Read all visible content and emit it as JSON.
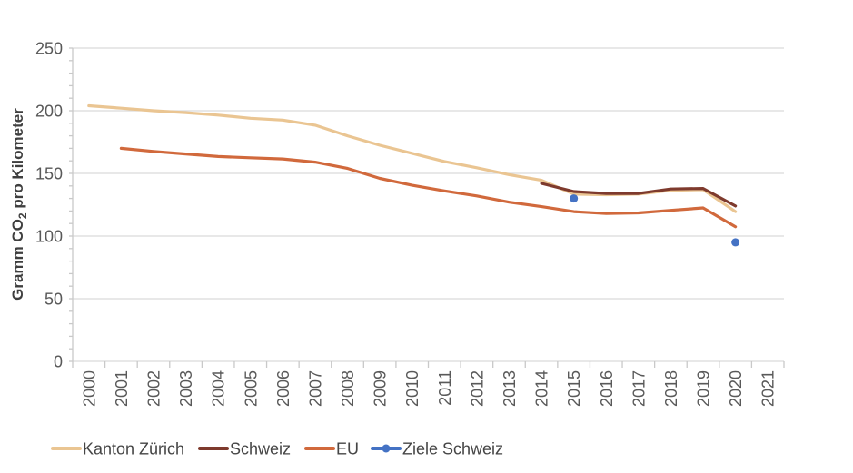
{
  "chart_data": {
    "type": "line",
    "title": "",
    "xlabel": "",
    "ylabel": "Gramm CO₂ pro Kilometer",
    "ylabel_parts": {
      "pre": "Gramm CO",
      "sub": "2",
      "post": " pro Kilometer"
    },
    "ylim": [
      0,
      250
    ],
    "yticks": [
      250,
      200,
      150,
      100,
      50,
      0
    ],
    "grid": "horizontal",
    "legend_position": "bottom-left",
    "x": [
      2000,
      2001,
      2002,
      2003,
      2004,
      2005,
      2006,
      2007,
      2008,
      2009,
      2010,
      2011,
      2012,
      2013,
      2014,
      2015,
      2016,
      2017,
      2018,
      2019,
      2020,
      2021
    ],
    "series": [
      {
        "name": "Kanton Zürich",
        "color": "#EAC592",
        "values": [
          204,
          202,
          200,
          198.5,
          196.5,
          194,
          192.5,
          188.5,
          180,
          172.5,
          166,
          159.5,
          154.5,
          149,
          144.5,
          133.5,
          133,
          133.5,
          136.5,
          137,
          119.5,
          null
        ]
      },
      {
        "name": "Schweiz",
        "color": "#7E3A2D",
        "values": [
          null,
          null,
          null,
          null,
          null,
          null,
          null,
          null,
          null,
          null,
          null,
          null,
          null,
          null,
          142,
          135.5,
          134,
          134,
          137.5,
          138,
          124,
          null
        ]
      },
      {
        "name": "EU",
        "color": "#D1693C",
        "values": [
          null,
          170,
          167.5,
          165.5,
          163.5,
          162.5,
          161.5,
          159,
          154,
          146,
          140.5,
          136,
          132,
          127,
          123.5,
          119.5,
          118,
          118.5,
          120.5,
          122.5,
          107.5,
          null
        ]
      },
      {
        "name": "Ziele Schweiz",
        "color": "#4472C4",
        "marker": true,
        "points": [
          {
            "year": 2015,
            "value": 130
          },
          {
            "year": 2020,
            "value": 95
          }
        ]
      }
    ],
    "axis_colors": {
      "gridline": "#D9D9D9",
      "axis": "#C9C9C9"
    }
  }
}
